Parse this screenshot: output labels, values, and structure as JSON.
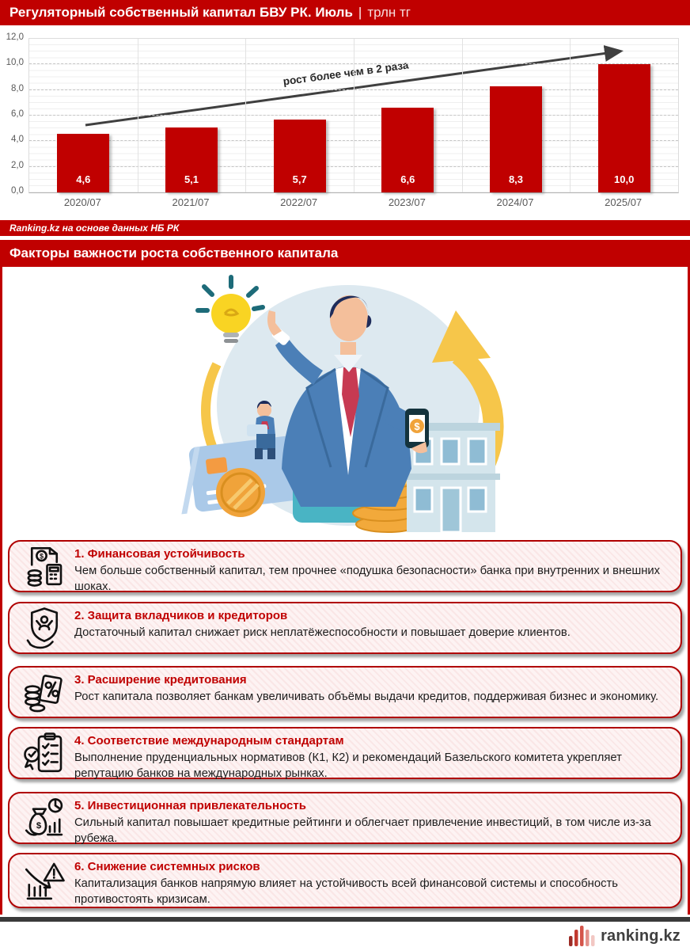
{
  "header": {
    "title": "Регуляторный собственный капитал БВУ РК. Июль",
    "separator": "|",
    "unit": "трлн тг"
  },
  "chart_data": {
    "type": "bar",
    "categories": [
      "2020/07",
      "2021/07",
      "2022/07",
      "2023/07",
      "2024/07",
      "2025/07"
    ],
    "values": [
      4.6,
      5.1,
      5.7,
      6.6,
      8.3,
      10.0
    ],
    "value_labels": [
      "4,6",
      "5,1",
      "5,7",
      "6,6",
      "8,3",
      "10,0"
    ],
    "ytick_values": [
      0,
      2,
      4,
      6,
      8,
      10,
      12
    ],
    "ytick_labels": [
      "0,0",
      "2,0",
      "4,0",
      "6,0",
      "8,0",
      "10,0",
      "12,0"
    ],
    "ylim": [
      0,
      12
    ],
    "grid": true,
    "bar_color": "#c00000",
    "annotation": "рост более чем в 2 раза",
    "title": "Регуляторный собственный капитал БВУ РК. Июль, трлн тг",
    "xlabel": "",
    "ylabel": ""
  },
  "source_bar": {
    "text": "Ranking.kz на основе данных НБ РК"
  },
  "section_header": {
    "title": "Факторы важности роста собственного капитала"
  },
  "factors": [
    {
      "title": "1. Финансовая устойчивость",
      "body": "Чем больше собственный капитал, тем прочнее «подушка безопасности» банка при внутренних и внешних шоках.",
      "icon": "finance-document-calculator-icon"
    },
    {
      "title": "2. Защита вкладчиков и кредиторов",
      "body": "Достаточный капитал снижает риск неплатёжеспособности и повышает доверие клиентов.",
      "icon": "shield-person-hand-icon"
    },
    {
      "title": "3. Расширение кредитования",
      "body": "Рост капитала позволяет банкам увеличивать объёмы выдачи кредитов, поддерживая бизнес и экономику.",
      "icon": "coins-percent-voucher-icon"
    },
    {
      "title": "4. Соответствие международным стандартам",
      "body": "Выполнение пруденциальных нормативов (К1, К2) и рекомендаций Базельского комитета укрепляет репутацию банков на международных рынках.",
      "icon": "checklist-medal-icon"
    },
    {
      "title": "5. Инвестиционная привлекательность",
      "body": "Сильный капитал повышает кредитные рейтинги и облегчает привлечение инвестиций, в том числе из-за рубежа.",
      "icon": "moneybag-charts-icon"
    },
    {
      "title": "6. Снижение системных рисков",
      "body": "Капитализация банков напрямую влияет на устойчивость всей финансовой системы и способность противостоять кризисам.",
      "icon": "declining-chart-warning-icon"
    }
  ],
  "footer": {
    "logo_text": "ranking.kz"
  },
  "colors": {
    "accent_red": "#c00000",
    "card_border": "#b00000",
    "card_bg": "#fdf3f3",
    "axis_text": "#595959",
    "trend_arrow": "#3f3f3f",
    "footer_rule": "#3a3a3a"
  }
}
